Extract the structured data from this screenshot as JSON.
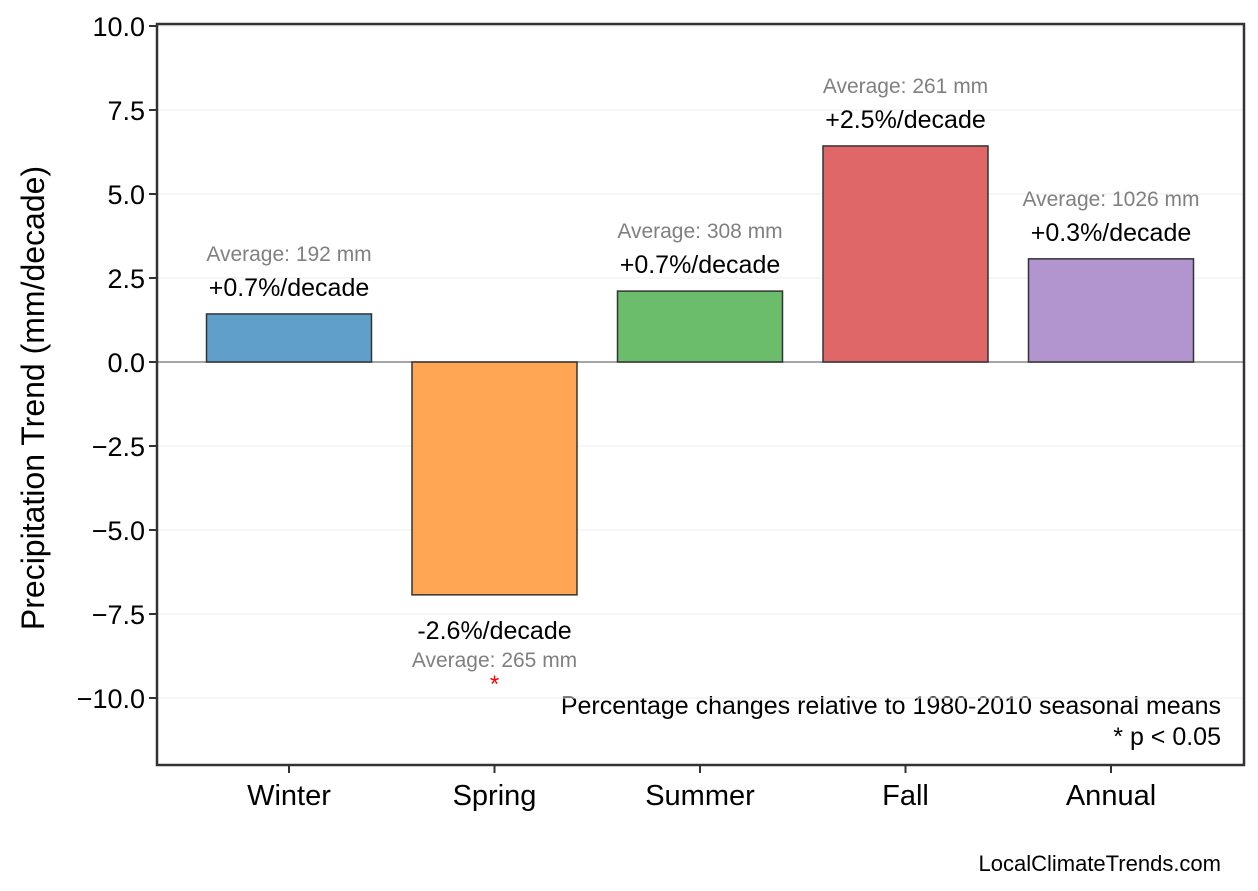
{
  "chart_data": {
    "type": "bar",
    "categories": [
      "Winter",
      "Spring",
      "Summer",
      "Fall",
      "Annual"
    ],
    "values": [
      1.43,
      -6.93,
      2.11,
      6.43,
      3.07
    ],
    "colors": [
      "#5f9fca",
      "#fea654",
      "#6bbd6b",
      "#e06767",
      "#b295cf"
    ],
    "pct_labels": [
      "+0.7%/decade",
      "-2.6%/decade",
      "+0.7%/decade",
      "+2.5%/decade",
      "+0.3%/decade"
    ],
    "avg_labels": [
      "Average: 192 mm",
      "Average: 265 mm",
      "Average: 308 mm",
      "Average: 261 mm",
      "Average: 1026 mm"
    ],
    "significant": [
      false,
      true,
      false,
      false,
      false
    ],
    "significance_marker": "*",
    "ylabel": "Precipitation Trend (mm/decade)",
    "xlabel": "",
    "ylim": [
      -12,
      10
    ],
    "yticks": [
      10,
      7.5,
      5,
      2.5,
      0,
      -2.5,
      -5,
      -7.5,
      -10
    ],
    "ytick_labels": [
      "10.0",
      "7.5",
      "5.0",
      "2.5",
      "0.0",
      "−2.5",
      "−5.0",
      "−7.5",
      "−10.0"
    ],
    "grid": true,
    "note_lines": [
      "Percentage changes relative to 1980-2010 seasonal means",
      "* p < 0.05"
    ],
    "credit": "LocalClimateTrends.com"
  }
}
